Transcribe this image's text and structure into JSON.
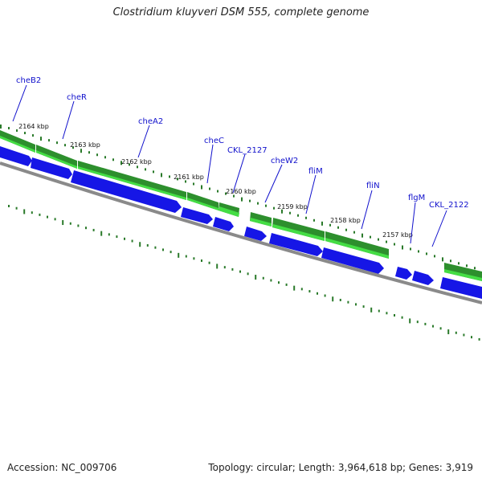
{
  "title": "Clostridium kluyveri DSM 555, complete genome",
  "footer": {
    "accession": "Accession: NC_009706",
    "summary": "Topology: circular; Length: 3,964,618 bp; Genes: 3,919"
  },
  "colors": {
    "cds": "#1616e6",
    "cds_dark": "#0000a0",
    "gene": "#2d8f2d",
    "gene_light": "#44dd44",
    "backbone": "#8a8a8a",
    "tick": "#2a7a2a",
    "label": "#1010cc"
  },
  "scale_ticks": [
    {
      "label": "2164 kbp"
    },
    {
      "label": "2163 kbp"
    },
    {
      "label": "2162 kbp"
    },
    {
      "label": "2161 kbp"
    },
    {
      "label": "2160 kbp"
    },
    {
      "label": "2159 kbp"
    },
    {
      "label": "2158 kbp"
    },
    {
      "label": "2157 kbp"
    }
  ],
  "gene_labels": [
    {
      "name": "cheB2"
    },
    {
      "name": "cheR"
    },
    {
      "name": "cheA2"
    },
    {
      "name": "cheC"
    },
    {
      "name": "CKL_2127"
    },
    {
      "name": "cheW2"
    },
    {
      "name": "fliM"
    },
    {
      "name": "fliN"
    },
    {
      "name": "flgM"
    },
    {
      "name": "CKL_2122"
    }
  ]
}
